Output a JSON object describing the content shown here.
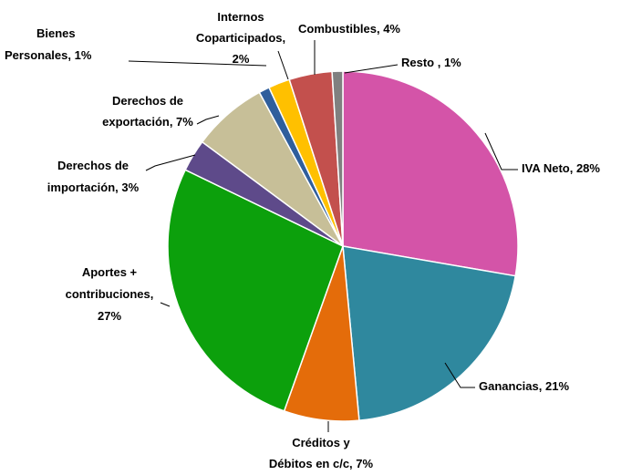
{
  "chart_data": {
    "type": "pie",
    "categories": [
      [
        "IVA Neto, 28%"
      ],
      [
        "Ganancias, 21%"
      ],
      [
        "Créditos y",
        "Débitos en c/c, 7%"
      ],
      [
        "Aportes +",
        "contribuciones,",
        "27%"
      ],
      [
        "Derechos de",
        "importación, 3%"
      ],
      [
        "Derechos de",
        "exportación, 7%"
      ],
      [
        "Bienes",
        "Personales, 1%"
      ],
      [
        "Internos",
        "Coparticipados,",
        "2%"
      ],
      [
        "Combustibles, 4%"
      ],
      [
        "Resto , 1%"
      ]
    ],
    "values": [
      28,
      21,
      7,
      27,
      3,
      7,
      1,
      2,
      4,
      1
    ],
    "colors": [
      "#d454a8",
      "#2f889e",
      "#e46c0a",
      "#0ca00c",
      "#5e4a8a",
      "#c7bf98",
      "#2f5e9c",
      "#ffc000",
      "#c3504d",
      "#808080"
    ]
  }
}
